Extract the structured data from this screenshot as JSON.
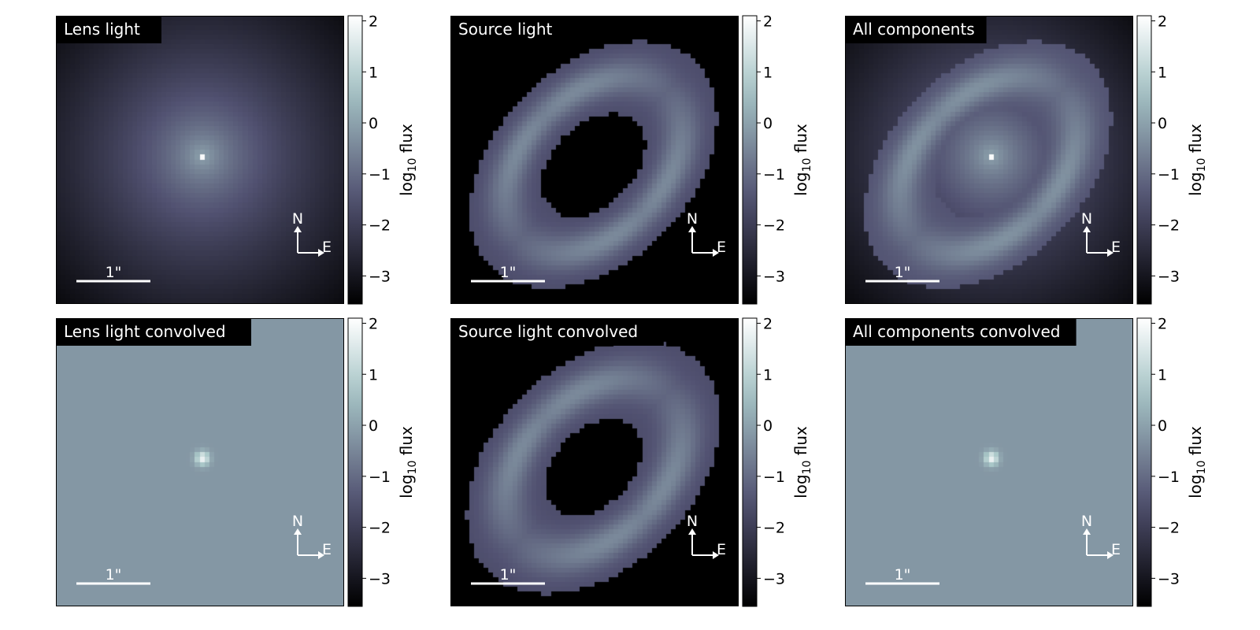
{
  "figure": {
    "panels": [
      {
        "id": "lens-light",
        "title": "Lens light",
        "component": "lens",
        "convolved": false
      },
      {
        "id": "source-light",
        "title": "Source light",
        "component": "source",
        "convolved": false
      },
      {
        "id": "all-components",
        "title": "All components",
        "component": "all",
        "convolved": false
      },
      {
        "id": "lens-light-convolved",
        "title": "Lens light convolved",
        "component": "lens",
        "convolved": true
      },
      {
        "id": "source-light-convolved",
        "title": "Source light convolved",
        "component": "source",
        "convolved": true
      },
      {
        "id": "all-components-convolved",
        "title": "All components convolved",
        "component": "all",
        "convolved": true
      }
    ],
    "scale_bar_label": "1\"",
    "compass": {
      "north": "N",
      "east": "E"
    },
    "colorbar": {
      "label": "log",
      "label_subscript": "10",
      "label_suffix": " flux",
      "ticks": [
        "2",
        "1",
        "0",
        "−1",
        "−2",
        "−3"
      ],
      "tick_values": [
        2,
        1,
        0,
        -1,
        -2,
        -3
      ],
      "range": [
        -3.55,
        2.1
      ],
      "colormap": "bone"
    }
  },
  "chart_data": {
    "type": "heatmap",
    "panel_count": 6,
    "colorbar_label": "log10 flux",
    "colorbar_range": [
      -3.55,
      2.1
    ],
    "colorbar_ticks": [
      2,
      1,
      0,
      -1,
      -2,
      -3
    ],
    "scale_bar": "1\""
  }
}
